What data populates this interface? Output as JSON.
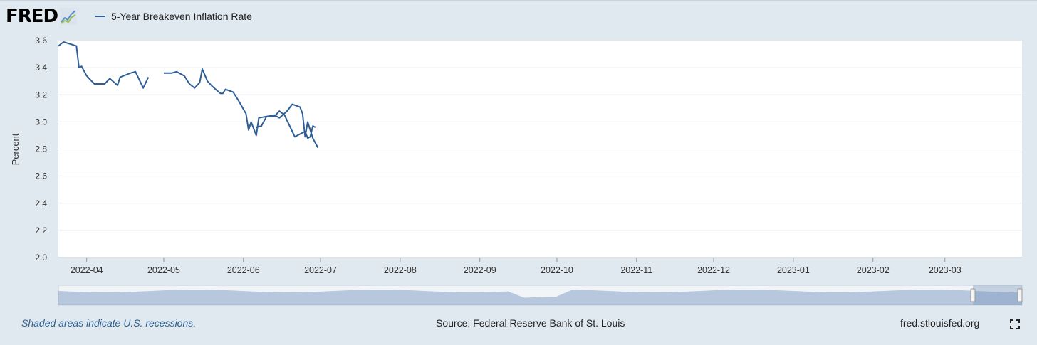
{
  "logo": {
    "text": "FRED"
  },
  "legend": {
    "label": "5-Year Breakeven Inflation Rate"
  },
  "footer": {
    "recessions_note": "Shaded areas indicate U.S. recessions.",
    "source": "Source: Federal Reserve Bank of St. Louis",
    "site": "fred.stlouisfed.org"
  },
  "colors": {
    "series": "#2f5e97",
    "background": "#e1e9f0",
    "navigator_fill": "#8ea9cd"
  },
  "icons": {
    "fullscreen": "fullscreen-icon"
  },
  "chart_data": {
    "type": "line",
    "ylabel": "Percent",
    "ylim": [
      2.0,
      3.6
    ],
    "yticks": [
      "2.0",
      "2.2",
      "2.4",
      "2.6",
      "2.8",
      "3.0",
      "3.2",
      "3.4",
      "3.6"
    ],
    "xlim": [
      "2022-03-21",
      "2023-03-31"
    ],
    "xticks": [
      {
        "date": "2022-04-01",
        "label": "2022-04"
      },
      {
        "date": "2022-05-01",
        "label": "2022-05"
      },
      {
        "date": "2022-06-01",
        "label": "2022-06"
      },
      {
        "date": "2022-07-01",
        "label": "2022-07"
      },
      {
        "date": "2022-08-01",
        "label": "2022-08"
      },
      {
        "date": "2022-09-01",
        "label": "2022-09"
      },
      {
        "date": "2022-10-01",
        "label": "2022-10"
      },
      {
        "date": "2022-11-01",
        "label": "2022-11"
      },
      {
        "date": "2022-12-01",
        "label": "2022-12"
      },
      {
        "date": "2023-01-01",
        "label": "2023-01"
      },
      {
        "date": "2023-02-01",
        "label": "2023-02"
      },
      {
        "date": "2023-03-01",
        "label": "2023-03"
      }
    ],
    "grid": true,
    "legend_position": "top-left",
    "series": [
      {
        "name": "5-Year Breakeven Inflation Rate",
        "segments": [
          [
            [
              "2022-03-21",
              3.56
            ],
            [
              "2022-03-23",
              3.59
            ],
            [
              "2022-03-28",
              3.56
            ],
            [
              "2022-03-29",
              3.4
            ],
            [
              "2022-03-30",
              3.41
            ],
            [
              "2022-04-01",
              3.34
            ],
            [
              "2022-04-04",
              3.28
            ],
            [
              "2022-04-07",
              3.28
            ],
            [
              "2022-04-08",
              3.28
            ],
            [
              "2022-04-10",
              3.32
            ],
            [
              "2022-04-13",
              3.27
            ],
            [
              "2022-04-14",
              3.33
            ],
            [
              "2022-04-18",
              3.36
            ],
            [
              "2022-04-20",
              3.37
            ],
            [
              "2022-04-22",
              3.29
            ],
            [
              "2022-04-23",
              3.25
            ],
            [
              "2022-04-25",
              3.33
            ]
          ],
          [
            [
              "2022-05-01",
              3.36
            ],
            [
              "2022-05-03",
              3.36
            ],
            [
              "2022-05-04",
              3.36
            ],
            [
              "2022-05-06",
              3.37
            ],
            [
              "2022-05-09",
              3.34
            ],
            [
              "2022-05-11",
              3.28
            ],
            [
              "2022-05-13",
              3.25
            ],
            [
              "2022-05-15",
              3.29
            ],
            [
              "2022-05-16",
              3.39
            ],
            [
              "2022-05-18",
              3.3
            ],
            [
              "2022-05-20",
              3.26
            ],
            [
              "2022-05-23",
              3.21
            ],
            [
              "2022-05-24",
              3.21
            ],
            [
              "2022-05-25",
              3.24
            ],
            [
              "2022-05-28",
              3.22
            ],
            [
              "2022-05-30",
              3.16
            ],
            [
              "2022-06-02",
              3.06
            ],
            [
              "2022-06-03",
              2.94
            ],
            [
              "2022-06-04",
              3.0
            ],
            [
              "2022-06-06",
              2.9
            ],
            [
              "2022-06-07",
              3.03
            ],
            [
              "2022-06-10",
              3.04
            ],
            [
              "2022-06-13",
              3.04
            ],
            [
              "2022-06-15",
              3.08
            ],
            [
              "2022-06-17",
              3.05
            ],
            [
              "2022-06-21",
              2.89
            ],
            [
              "2022-06-25",
              2.93
            ],
            [
              "2022-06-26",
              2.88
            ],
            [
              "2022-06-27",
              2.89
            ],
            [
              "2022-06-28",
              2.97
            ],
            [
              "2022-06-29",
              2.96
            ]
          ],
          [
            [
              "2022-06-06",
              2.96
            ],
            [
              "2022-06-08",
              2.97
            ],
            [
              "2022-06-10",
              3.04
            ],
            [
              "2022-06-13",
              3.05
            ],
            [
              "2022-06-15",
              3.03
            ],
            [
              "2022-06-18",
              3.08
            ],
            [
              "2022-06-20",
              3.13
            ],
            [
              "2022-06-23",
              3.11
            ],
            [
              "2022-06-24",
              3.06
            ],
            [
              "2022-06-25",
              2.89
            ],
            [
              "2022-06-26",
              3.0
            ],
            [
              "2022-06-28",
              2.88
            ],
            [
              "2022-06-30",
              2.81
            ]
          ]
        ]
      }
    ]
  }
}
